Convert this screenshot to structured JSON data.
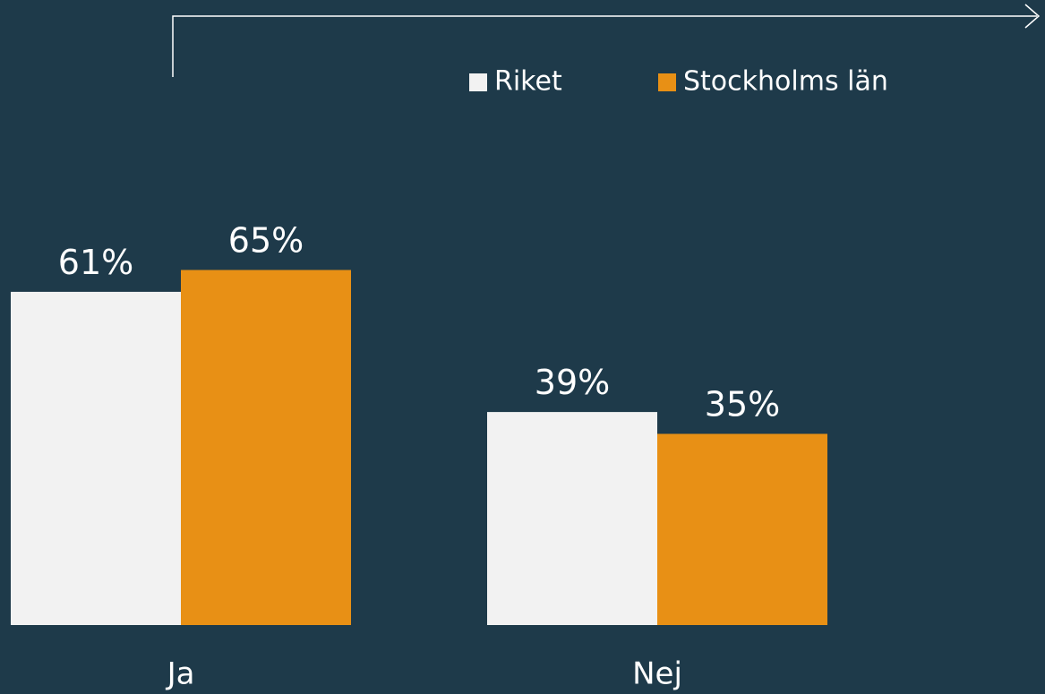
{
  "chart_data": {
    "type": "bar",
    "categories": [
      "Ja",
      "Nej"
    ],
    "series": [
      {
        "name": "Riket",
        "color": "#f2f2f2",
        "values": [
          61,
          39
        ],
        "value_labels": [
          "61%",
          "39%"
        ]
      },
      {
        "name": "Stockholms län",
        "color": "#e89015",
        "values": [
          65,
          35
        ],
        "value_labels": [
          "65%",
          "35%"
        ]
      }
    ]
  }
}
